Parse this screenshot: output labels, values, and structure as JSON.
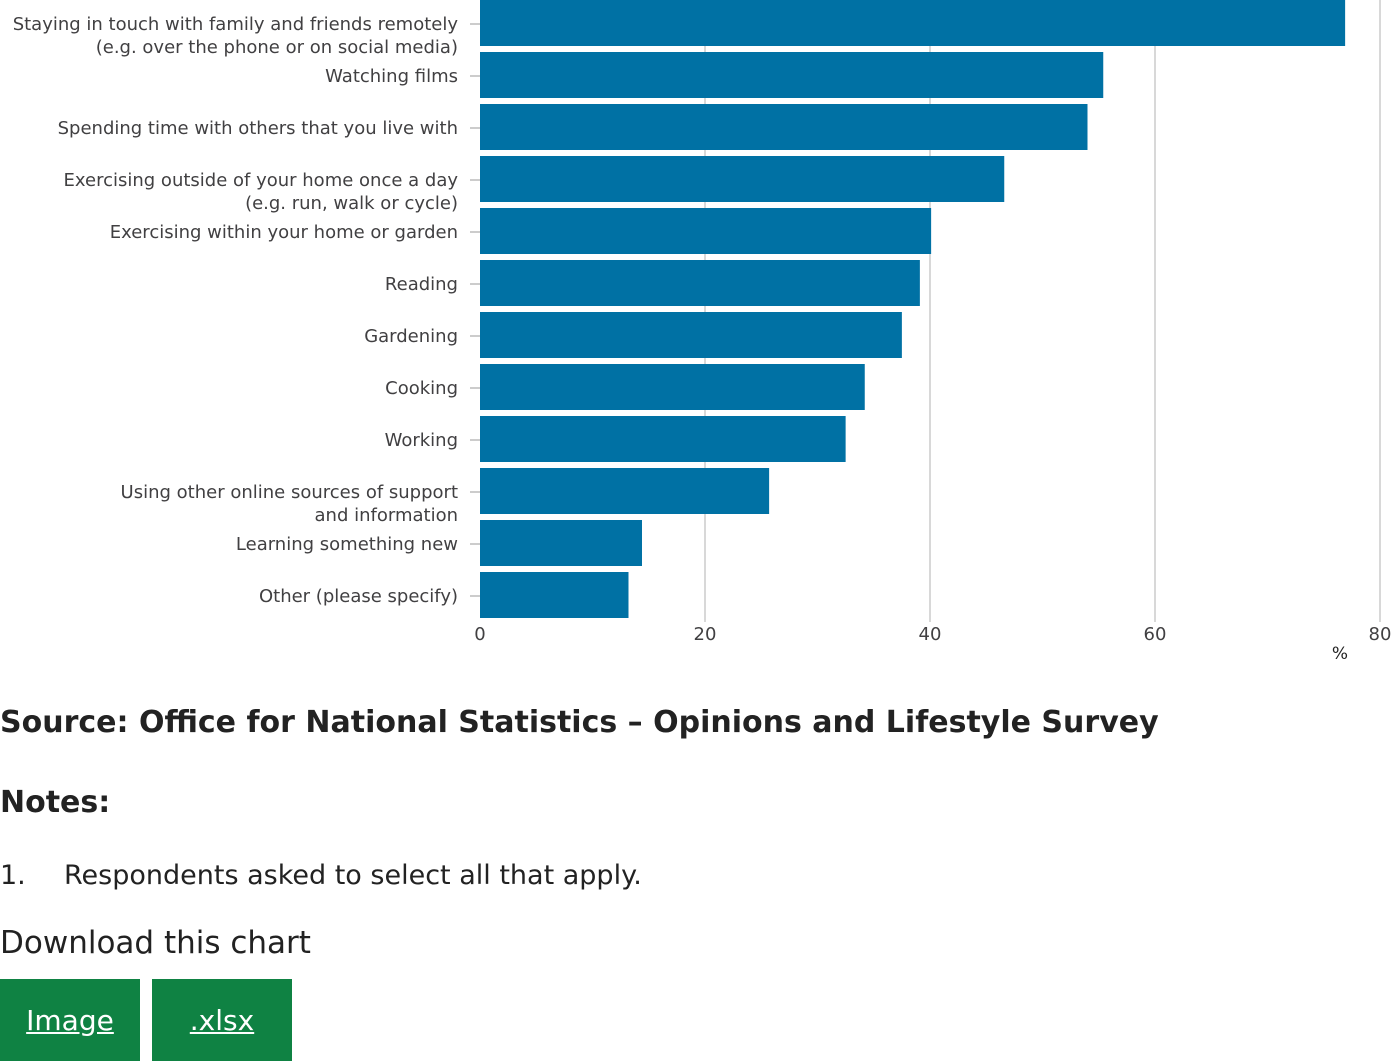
{
  "chart_data": {
    "type": "bar",
    "orientation": "horizontal",
    "categories": [
      [
        "Staying in touch with family and friends remotely",
        "(e.g. over the phone or on social media)"
      ],
      [
        "Watching films"
      ],
      [
        "Spending time with others that you live with"
      ],
      [
        "Exercising outside of your home once a day",
        "(e.g. run, walk or cycle)"
      ],
      [
        "Exercising within your home or garden"
      ],
      [
        "Reading"
      ],
      [
        "Gardening"
      ],
      [
        "Cooking"
      ],
      [
        "Working"
      ],
      [
        "Using other online sources of support",
        "and information"
      ],
      [
        "Learning something new"
      ],
      [
        "Other (please specify)"
      ]
    ],
    "values": [
      76.9,
      55.4,
      54.0,
      46.6,
      40.1,
      39.1,
      37.5,
      34.2,
      32.5,
      25.7,
      14.4,
      13.2
    ],
    "xlim": [
      0,
      80
    ],
    "xticks": [
      "0",
      "20",
      "40",
      "60",
      "80"
    ],
    "xunit": "%",
    "grid": true,
    "bar_color": "#0071a4"
  },
  "source": "Source: Office for National Statistics – Opinions and Lifestyle Survey",
  "notes": {
    "title": "Notes:",
    "items": [
      {
        "number": "1.",
        "text": "Respondents asked to select all that apply."
      }
    ]
  },
  "download": {
    "title": "Download this chart",
    "image_label": "Image",
    "xlsx_label": ".xlsx",
    "button_color": "#0f8243"
  }
}
